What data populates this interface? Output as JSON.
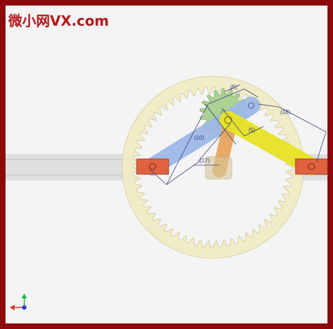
{
  "watermark": {
    "cjk": "微小网",
    "latin": "VX.com"
  },
  "dimensions": {
    "d10": "(10)",
    "d17": "(17)",
    "d5": "(5)",
    "d18": "(18)",
    "d5b": "(5)"
  },
  "colors": {
    "frame": "#8c0a0e",
    "background": "#f4f4f4",
    "ring_gear": "#f1ecc5",
    "sun_gear": "#a8d08f",
    "crank_blue": "#9db7e6",
    "link_yellow": "#e8e325",
    "arm_orange": "#e6a45a",
    "slider_red": "#e0623e",
    "rail": "#d9d9d9",
    "dimension": "#3a3f7a"
  },
  "icons": [
    "triad-axis-icon"
  ]
}
